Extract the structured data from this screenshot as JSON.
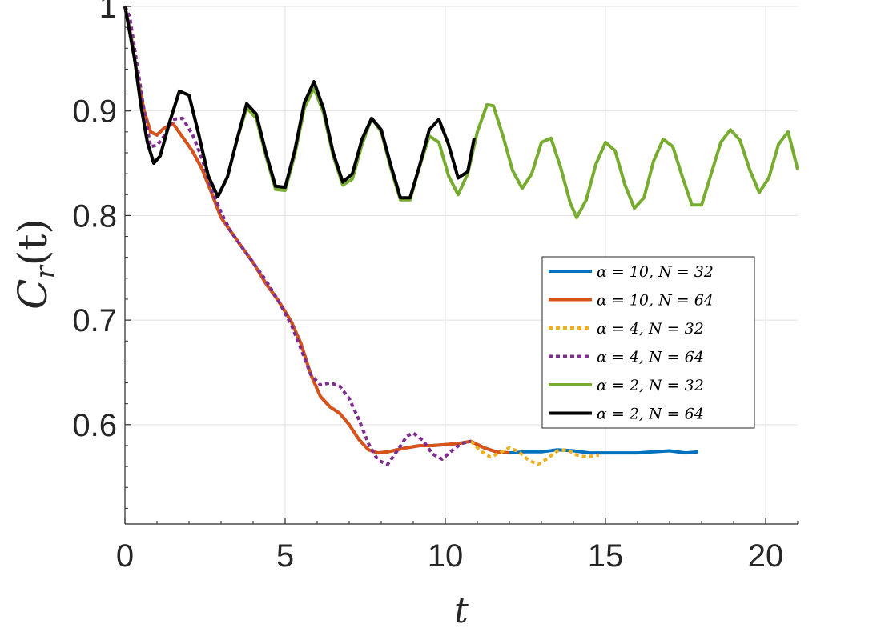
{
  "chart_data": {
    "type": "line",
    "title": "",
    "xlabel": "t",
    "ylabel_main": "C",
    "ylabel_sub": "r",
    "ylabel_arg": "(t)",
    "xlim": [
      0,
      21
    ],
    "ylim": [
      0.505,
      1.0
    ],
    "xticks": [
      0,
      5,
      10,
      15,
      20
    ],
    "xtick_labels": [
      "0",
      "5",
      "10",
      "15",
      "20"
    ],
    "yticks": [
      0.6,
      0.7,
      0.8,
      0.9,
      1.0
    ],
    "ytick_labels": [
      "0.6",
      "0.7",
      "0.8",
      "0.9",
      "1"
    ],
    "grid": true,
    "legend_position": "center-right",
    "series": [
      {
        "name": "α = 10, N = 32",
        "color": "#0072BD",
        "dash": "solid",
        "x": [
          0,
          0.2,
          0.4,
          0.6,
          0.8,
          1.0,
          1.2,
          1.5,
          1.8,
          2.1,
          2.4,
          2.7,
          3.0,
          3.3,
          3.6,
          4.0,
          4.4,
          4.8,
          5.2,
          5.5,
          5.8,
          6.1,
          6.4,
          6.7,
          7.0,
          7.3,
          7.6,
          7.9,
          8.2,
          8.5,
          8.8,
          9.2,
          9.6,
          10.0,
          10.4,
          10.8,
          11.2,
          11.6,
          12.0,
          12.5,
          13.0,
          13.5,
          14.0,
          14.5,
          15.0,
          15.5,
          16.0,
          16.5,
          17.0,
          17.5,
          17.9
        ],
        "y": [
          1.0,
          0.97,
          0.93,
          0.9,
          0.88,
          0.877,
          0.883,
          0.888,
          0.875,
          0.862,
          0.845,
          0.822,
          0.798,
          0.785,
          0.772,
          0.755,
          0.735,
          0.718,
          0.698,
          0.677,
          0.648,
          0.627,
          0.617,
          0.611,
          0.6,
          0.586,
          0.576,
          0.573,
          0.574,
          0.576,
          0.578,
          0.58,
          0.58,
          0.581,
          0.582,
          0.584,
          0.578,
          0.574,
          0.573,
          0.574,
          0.574,
          0.576,
          0.575,
          0.573,
          0.573,
          0.573,
          0.573,
          0.574,
          0.575,
          0.573,
          0.574
        ]
      },
      {
        "name": "α = 10, N = 64",
        "color": "#D95319",
        "dash": "solid",
        "x": [
          0,
          0.2,
          0.4,
          0.6,
          0.8,
          1.0,
          1.2,
          1.5,
          1.8,
          2.1,
          2.4,
          2.7,
          3.0,
          3.3,
          3.6,
          4.0,
          4.4,
          4.8,
          5.2,
          5.5,
          5.8,
          6.1,
          6.4,
          6.7,
          7.0,
          7.3,
          7.6,
          7.9,
          8.2,
          8.5,
          8.8,
          9.2,
          9.6,
          10.0,
          10.4,
          10.8,
          11.2,
          11.6,
          12.0
        ],
        "y": [
          1.0,
          0.97,
          0.93,
          0.9,
          0.88,
          0.877,
          0.883,
          0.888,
          0.875,
          0.862,
          0.845,
          0.822,
          0.798,
          0.785,
          0.772,
          0.755,
          0.735,
          0.718,
          0.698,
          0.677,
          0.648,
          0.627,
          0.617,
          0.611,
          0.6,
          0.586,
          0.576,
          0.573,
          0.574,
          0.576,
          0.578,
          0.58,
          0.58,
          0.581,
          0.582,
          0.584,
          0.578,
          0.574,
          0.573
        ]
      },
      {
        "name": "α = 4, N = 32",
        "color": "#EDB120",
        "dash": "dotted",
        "x": [
          10.8,
          11.1,
          11.4,
          11.7,
          12.0,
          12.3,
          12.6,
          12.9,
          13.2,
          13.5,
          13.8,
          14.1,
          14.4,
          14.8
        ],
        "y": [
          0.584,
          0.575,
          0.569,
          0.573,
          0.578,
          0.574,
          0.566,
          0.562,
          0.568,
          0.575,
          0.576,
          0.571,
          0.569,
          0.571
        ]
      },
      {
        "name": "α = 4, N = 64",
        "color": "#7E2F8E",
        "dash": "dotted",
        "x": [
          0,
          0.15,
          0.3,
          0.45,
          0.6,
          0.8,
          1.0,
          1.2,
          1.5,
          1.8,
          2.1,
          2.4,
          2.7,
          3.0,
          3.3,
          3.6,
          4.0,
          4.4,
          4.8,
          5.2,
          5.5,
          5.8,
          6.1,
          6.4,
          6.7,
          7.0,
          7.3,
          7.6,
          7.9,
          8.2,
          8.5,
          8.8,
          9.0,
          9.3,
          9.6,
          9.9,
          10.2,
          10.5,
          10.8
        ],
        "y": [
          1.0,
          0.99,
          0.96,
          0.93,
          0.9,
          0.866,
          0.867,
          0.875,
          0.892,
          0.893,
          0.878,
          0.855,
          0.825,
          0.803,
          0.785,
          0.772,
          0.755,
          0.738,
          0.718,
          0.695,
          0.672,
          0.648,
          0.638,
          0.64,
          0.637,
          0.625,
          0.605,
          0.582,
          0.566,
          0.562,
          0.575,
          0.589,
          0.592,
          0.585,
          0.572,
          0.567,
          0.575,
          0.582,
          0.584
        ]
      },
      {
        "name": "α = 2, N = 32",
        "color": "#77AC30",
        "dash": "solid",
        "x": [
          0,
          0.3,
          0.5,
          0.7,
          0.9,
          1.1,
          1.4,
          1.7,
          2.0,
          2.3,
          2.6,
          2.9,
          3.2,
          3.5,
          3.8,
          4.1,
          4.4,
          4.7,
          5.0,
          5.3,
          5.6,
          5.9,
          6.2,
          6.5,
          6.8,
          7.1,
          7.4,
          7.7,
          8.0,
          8.3,
          8.6,
          8.9,
          9.2,
          9.5,
          9.8,
          10.1,
          10.4,
          10.7,
          11.0,
          11.3,
          11.5,
          11.8,
          12.1,
          12.4,
          12.7,
          13.0,
          13.3,
          13.6,
          13.9,
          14.1,
          14.4,
          14.7,
          15.0,
          15.3,
          15.6,
          15.9,
          16.2,
          16.5,
          16.8,
          17.1,
          17.4,
          17.7,
          18.0,
          18.3,
          18.6,
          18.9,
          19.2,
          19.5,
          19.8,
          20.1,
          20.4,
          20.7,
          21.0
        ],
        "y": [
          1.0,
          0.95,
          0.905,
          0.87,
          0.85,
          0.857,
          0.89,
          0.919,
          0.915,
          0.878,
          0.838,
          0.818,
          0.837,
          0.873,
          0.903,
          0.893,
          0.857,
          0.825,
          0.824,
          0.858,
          0.903,
          0.922,
          0.898,
          0.857,
          0.829,
          0.835,
          0.868,
          0.893,
          0.88,
          0.845,
          0.815,
          0.815,
          0.847,
          0.876,
          0.87,
          0.838,
          0.82,
          0.84,
          0.88,
          0.906,
          0.905,
          0.876,
          0.843,
          0.826,
          0.84,
          0.87,
          0.874,
          0.846,
          0.812,
          0.798,
          0.815,
          0.849,
          0.87,
          0.862,
          0.83,
          0.807,
          0.817,
          0.852,
          0.873,
          0.866,
          0.837,
          0.81,
          0.81,
          0.84,
          0.87,
          0.882,
          0.872,
          0.844,
          0.822,
          0.836,
          0.868,
          0.88,
          0.844
        ]
      },
      {
        "name": "α = 2, N = 64",
        "color": "#000000",
        "dash": "solid",
        "x": [
          0,
          0.3,
          0.5,
          0.7,
          0.9,
          1.1,
          1.4,
          1.7,
          2.0,
          2.3,
          2.6,
          2.9,
          3.2,
          3.5,
          3.8,
          4.1,
          4.4,
          4.7,
          5.0,
          5.3,
          5.6,
          5.9,
          6.2,
          6.5,
          6.8,
          7.1,
          7.4,
          7.7,
          8.0,
          8.3,
          8.6,
          8.9,
          9.2,
          9.5,
          9.8,
          10.1,
          10.4,
          10.7,
          10.9
        ],
        "y": [
          1.0,
          0.95,
          0.905,
          0.87,
          0.85,
          0.857,
          0.89,
          0.919,
          0.915,
          0.878,
          0.838,
          0.818,
          0.837,
          0.873,
          0.907,
          0.897,
          0.86,
          0.828,
          0.827,
          0.862,
          0.908,
          0.928,
          0.902,
          0.86,
          0.832,
          0.84,
          0.873,
          0.893,
          0.882,
          0.848,
          0.817,
          0.817,
          0.848,
          0.882,
          0.892,
          0.868,
          0.836,
          0.842,
          0.874
        ]
      }
    ]
  }
}
